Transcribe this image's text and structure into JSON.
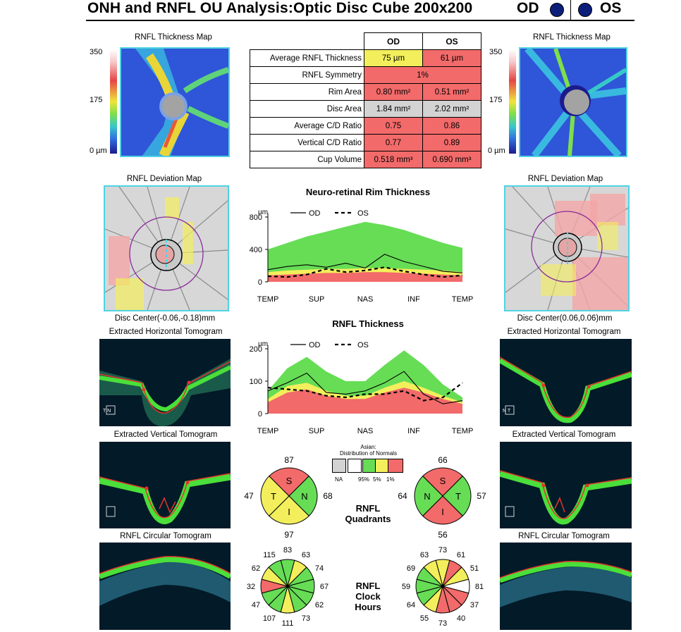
{
  "header": {
    "title": "ONH and RNFL OU Analysis:Optic Disc Cube 200x200",
    "od_label": "OD",
    "os_label": "OS",
    "eye_dot_color": "#0b1f7a"
  },
  "labels": {
    "thickness_map": "RNFL Thickness Map",
    "deviation_map": "RNFL Deviation Map",
    "scale_max": "350",
    "scale_mid": "175",
    "scale_min": "0 µm",
    "disc_center_od": "Disc Center(-0.06,-0.18)mm",
    "disc_center_os": "Disc Center(0.06,0.06)mm",
    "horizontal_tomogram": "Extracted Horizontal Tomogram",
    "vertical_tomogram": "Extracted Vertical Tomogram",
    "circular_tomogram": "RNFL Circular Tomogram",
    "tomo_marker_od_h": "T  N",
    "tomo_marker_os_h": "N  T"
  },
  "params_table": {
    "col_od": "OD",
    "col_os": "OS",
    "rows": [
      {
        "label": "Average RNFL Thickness",
        "od": "75 µm",
        "os": "61 µm"
      },
      {
        "label": "RNFL Symmetry",
        "both": "1%"
      },
      {
        "label": "Rim Area",
        "od": "0.80 mm²",
        "os": "0.51 mm²"
      },
      {
        "label": "Disc Area",
        "od": "1.84 mm²",
        "os": "2.02 mm²"
      },
      {
        "label": "Average C/D Ratio",
        "od": "0.75",
        "os": "0.86"
      },
      {
        "label": "Vertical C/D Ratio",
        "od": "0.77",
        "os": "0.89"
      },
      {
        "label": "Cup Volume",
        "od": "0.518 mm³",
        "os": "0.690 mm³"
      }
    ]
  },
  "chart_data": [
    {
      "type": "line",
      "title": "Neuro-retinal Rim Thickness",
      "ylabel": "µm",
      "legend": [
        "OD",
        "OS"
      ],
      "categories": [
        "TEMP",
        "SUP",
        "NAS",
        "INF",
        "TEMP"
      ],
      "ylim": [
        0,
        800
      ],
      "yticks": [
        "800",
        "400",
        "0"
      ],
      "x": [
        0,
        10,
        20,
        30,
        40,
        50,
        60,
        70,
        80,
        90,
        100
      ],
      "normal_green_upper": [
        400,
        480,
        560,
        620,
        680,
        740,
        700,
        640,
        560,
        480,
        420
      ],
      "normal_yellow_upper": [
        120,
        140,
        150,
        160,
        160,
        170,
        170,
        160,
        150,
        140,
        120
      ],
      "normal_red_upper": [
        80,
        90,
        100,
        110,
        110,
        120,
        120,
        110,
        100,
        90,
        80
      ],
      "series": [
        {
          "name": "OD",
          "values": [
            150,
            190,
            210,
            180,
            230,
            170,
            340,
            250,
            190,
            130,
            110
          ]
        },
        {
          "name": "OS",
          "values": [
            70,
            60,
            90,
            160,
            120,
            140,
            180,
            130,
            90,
            60,
            80
          ]
        }
      ]
    },
    {
      "type": "line",
      "title": "RNFL Thickness",
      "ylabel": "µm",
      "legend": [
        "OD",
        "OS"
      ],
      "categories": [
        "TEMP",
        "SUP",
        "NAS",
        "INF",
        "TEMP"
      ],
      "ylim": [
        0,
        200
      ],
      "yticks": [
        "200",
        "100",
        "0"
      ],
      "x": [
        0,
        10,
        20,
        30,
        40,
        50,
        60,
        70,
        80,
        90,
        100
      ],
      "normal_green_upper": [
        70,
        140,
        175,
        130,
        100,
        100,
        150,
        195,
        150,
        90,
        50
      ],
      "normal_yellow_upper": [
        45,
        85,
        95,
        70,
        55,
        55,
        80,
        100,
        80,
        55,
        35
      ],
      "normal_red_upper": [
        35,
        65,
        75,
        55,
        45,
        45,
        65,
        80,
        65,
        45,
        30
      ],
      "series": [
        {
          "name": "OD",
          "values": [
            70,
            95,
            125,
            65,
            60,
            70,
            95,
            130,
            60,
            30,
            40
          ]
        },
        {
          "name": "OS",
          "values": [
            80,
            75,
            70,
            55,
            50,
            60,
            60,
            70,
            40,
            50,
            95
          ]
        }
      ]
    },
    {
      "type": "pie",
      "title": "RNFL Quadrants",
      "eye": "OD",
      "slices": [
        {
          "label": "S",
          "value": 87,
          "color": "#f26a6a"
        },
        {
          "label": "N",
          "value": 68,
          "color": "#66dd55"
        },
        {
          "label": "I",
          "value": 97,
          "color": "#f3ef5c"
        },
        {
          "label": "T",
          "value": 47,
          "color": "#f3ef5c"
        }
      ]
    },
    {
      "type": "pie",
      "title": "RNFL Quadrants",
      "eye": "OS",
      "slices": [
        {
          "label": "S",
          "value": 66,
          "color": "#f26a6a"
        },
        {
          "label": "T",
          "value": 57,
          "color": "#66dd55"
        },
        {
          "label": "I",
          "value": 56,
          "color": "#f26a6a"
        },
        {
          "label": "N",
          "value": 64,
          "color": "#66dd55"
        }
      ]
    },
    {
      "type": "pie",
      "title": "RNFL Clock Hours",
      "eye": "OD",
      "hours": [
        {
          "value": "83",
          "color": "#66dd55"
        },
        {
          "value": "63",
          "color": "#f3ef5c"
        },
        {
          "value": "74",
          "color": "#66dd55"
        },
        {
          "value": "67",
          "color": "#66dd55"
        },
        {
          "value": "62",
          "color": "#66dd55"
        },
        {
          "value": "73",
          "color": "#66dd55"
        },
        {
          "value": "111",
          "color": "#f3ef5c"
        },
        {
          "value": "107",
          "color": "#66dd55"
        },
        {
          "value": "47",
          "color": "#66dd55"
        },
        {
          "value": "32",
          "color": "#f26a6a"
        },
        {
          "value": "62",
          "color": "#f3ef5c"
        },
        {
          "value": "115",
          "color": "#66dd55"
        }
      ]
    },
    {
      "type": "pie",
      "title": "RNFL Clock Hours",
      "eye": "OS",
      "hours": [
        {
          "value": "73",
          "color": "#f3ef5c"
        },
        {
          "value": "61",
          "color": "#f26a6a"
        },
        {
          "value": "51",
          "color": "#f3ef5c"
        },
        {
          "value": "81",
          "color": "#ffffff"
        },
        {
          "value": "37",
          "color": "#f26a6a"
        },
        {
          "value": "40",
          "color": "#f26a6a"
        },
        {
          "value": "73",
          "color": "#f26a6a"
        },
        {
          "value": "55",
          "color": "#f3ef5c"
        },
        {
          "value": "64",
          "color": "#66dd55"
        },
        {
          "value": "59",
          "color": "#66dd55"
        },
        {
          "value": "69",
          "color": "#66dd55"
        },
        {
          "value": "63",
          "color": "#f3ef5c"
        }
      ]
    }
  ],
  "legend_normals": {
    "title_line1": "Asian:",
    "title_line2": "Distribution of Normals",
    "na": "NA",
    "p95": "95%",
    "p5": "5%",
    "p1": "1%"
  },
  "quadrant_label_line1": "RNFL",
  "quadrant_label_line2": "Quadrants",
  "clock_label_line1": "RNFL",
  "clock_label_line2": "Clock",
  "clock_label_line3": "Hours",
  "colors": {
    "green": "#66dd55",
    "yellow": "#f3ef5c",
    "red": "#f26a6a",
    "gray": "#d3d3d3",
    "frame_cyan": "#4fd3e3"
  }
}
